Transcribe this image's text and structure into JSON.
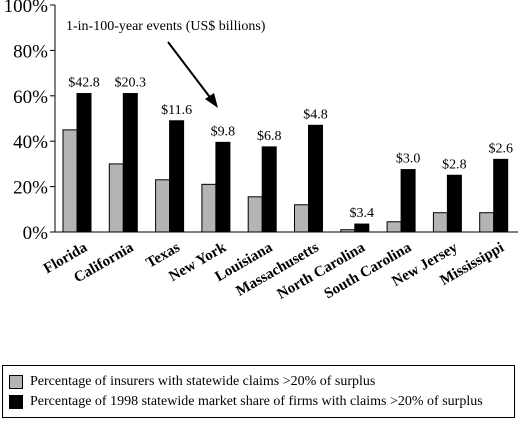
{
  "chart_data": {
    "type": "bar",
    "categories": [
      "Florida",
      "California",
      "Texas",
      "New York",
      "Louisiana",
      "Massachusetts",
      "North Carolina",
      "South Carolina",
      "New Jersey",
      "Mississippi"
    ],
    "series": [
      {
        "name": "Percentage of insurers with statewide claims >20% of surplus",
        "color": "#b4b4b4",
        "values": [
          45,
          30,
          23,
          21,
          15.5,
          12,
          1,
          4.5,
          8.5,
          8.5
        ]
      },
      {
        "name": "Percentage of 1998 statewide market share of firms with claims >20% of surplus",
        "color": "#000000",
        "values": [
          61,
          61,
          49,
          39.5,
          37.5,
          47,
          3.5,
          27.5,
          25,
          32
        ]
      }
    ],
    "data_labels": [
      "$42.8",
      "$20.3",
      "$11.6",
      "$9.8",
      "$6.8",
      "$4.8",
      "$3.4",
      "$3.0",
      "$2.8",
      "$2.6"
    ],
    "y_ticks": [
      "0%",
      "20%",
      "40%",
      "60%",
      "80%",
      "100%"
    ],
    "ylim": [
      0,
      100
    ],
    "annotation": "1-in-100-year events (US$ billions)",
    "legend_position": "bottom",
    "grid": false
  }
}
